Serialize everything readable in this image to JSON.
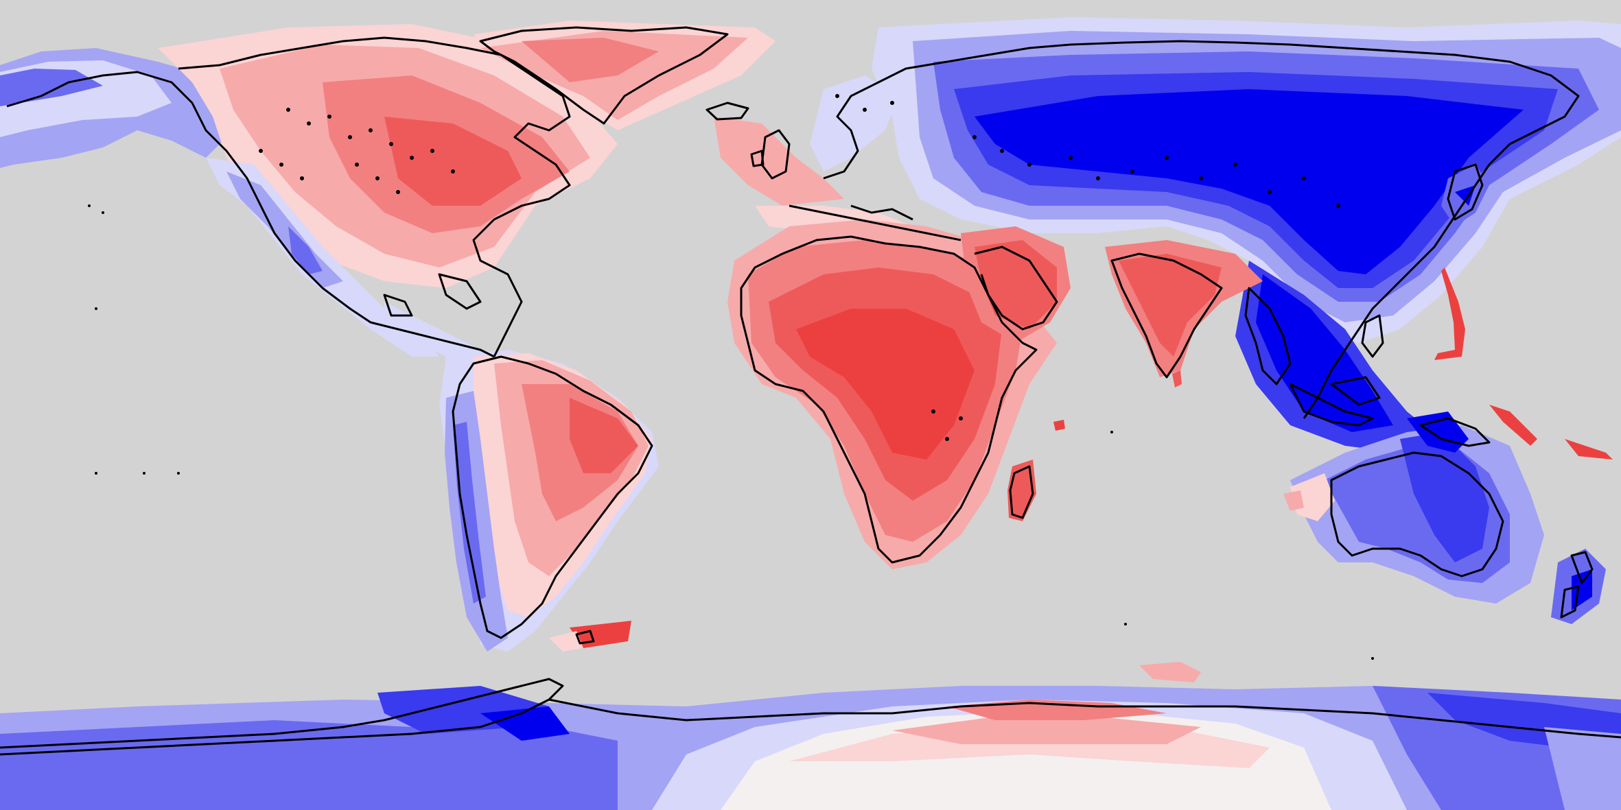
{
  "map": {
    "projection": "equirectangular",
    "background_color": "#d3d3d3",
    "coastline_color": "#000000",
    "palette": {
      "blue_strongest": "#0000ee",
      "blue_strong": "#3a3aee",
      "blue_medium": "#6a6af0",
      "blue_light": "#a4a4f4",
      "blue_pale": "#d8d8fa",
      "neutral": "#f4f0f0",
      "red_pale": "#fbd4d4",
      "red_light": "#f7aaaa",
      "red_medium": "#f28080",
      "red_strong": "#ee5a5a",
      "red_strongest": "#ec4040"
    },
    "regions": [
      {
        "name": "arctic-north-america",
        "sign": "positive",
        "level": "light"
      },
      {
        "name": "north-america-east",
        "sign": "positive",
        "level": "medium"
      },
      {
        "name": "north-america-west-coast",
        "sign": "negative",
        "level": "light"
      },
      {
        "name": "greenland",
        "sign": "positive",
        "level": "medium"
      },
      {
        "name": "western-europe",
        "sign": "positive",
        "level": "light"
      },
      {
        "name": "northern-eurasia",
        "sign": "negative",
        "level": "strongest"
      },
      {
        "name": "africa",
        "sign": "positive",
        "level": "strongest"
      },
      {
        "name": "arabia",
        "sign": "positive",
        "level": "strong"
      },
      {
        "name": "india",
        "sign": "positive",
        "level": "strong"
      },
      {
        "name": "southeast-asia",
        "sign": "negative",
        "level": "strongest"
      },
      {
        "name": "south-america",
        "sign": "positive",
        "level": "medium"
      },
      {
        "name": "andes-west-coast",
        "sign": "negative",
        "level": "light"
      },
      {
        "name": "australia",
        "sign": "negative",
        "level": "strong"
      },
      {
        "name": "antarctica-east",
        "sign": "negative",
        "level": "medium"
      },
      {
        "name": "antarctica-central",
        "sign": "positive",
        "level": "light"
      },
      {
        "name": "antarctica-west",
        "sign": "negative",
        "level": "strong"
      }
    ]
  }
}
